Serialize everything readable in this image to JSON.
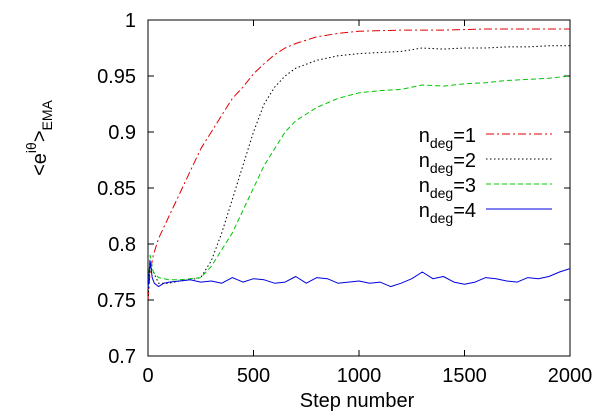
{
  "chart_data": {
    "type": "line",
    "title": "",
    "xlabel": "Step number",
    "ylabel_base": "<e",
    "ylabel_sup": "iθ",
    "ylabel_close": ">",
    "ylabel_sub": "EMA",
    "xlim": [
      0,
      2000
    ],
    "ylim": [
      0.7,
      1.0
    ],
    "xticks": [
      0,
      500,
      1000,
      1500,
      2000
    ],
    "xtick_labels": [
      "0",
      "500",
      "1000",
      "1500",
      "2000"
    ],
    "yticks": [
      0.7,
      0.75,
      0.8,
      0.85,
      0.9,
      0.95,
      1.0
    ],
    "ytick_labels": [
      "0.7",
      "0.75",
      "0.8",
      "0.85",
      "0.9",
      "0.95",
      "1"
    ],
    "grid": false,
    "legend_position": "right",
    "series": [
      {
        "name_base": "n",
        "name_sub": "deg",
        "name_suffix": "=1",
        "color": "#e00000",
        "dash": "dash-dot",
        "x": [
          0,
          10,
          25,
          50,
          100,
          150,
          200,
          250,
          300,
          350,
          400,
          450,
          500,
          550,
          600,
          650,
          700,
          800,
          900,
          1000,
          1200,
          1400,
          1600,
          1800,
          2000
        ],
        "y": [
          0.75,
          0.775,
          0.79,
          0.805,
          0.825,
          0.845,
          0.865,
          0.885,
          0.9,
          0.915,
          0.93,
          0.94,
          0.952,
          0.961,
          0.969,
          0.975,
          0.979,
          0.985,
          0.988,
          0.99,
          0.991,
          0.991,
          0.992,
          0.992,
          0.992
        ]
      },
      {
        "name_base": "n",
        "name_sub": "deg",
        "name_suffix": "=2",
        "color": "#000000",
        "dash": "dotted",
        "x": [
          0,
          10,
          25,
          50,
          100,
          150,
          200,
          250,
          300,
          350,
          400,
          450,
          500,
          550,
          600,
          650,
          700,
          800,
          900,
          1000,
          1100,
          1200,
          1300,
          1400,
          1500,
          1600,
          1700,
          1800,
          1900,
          2000
        ],
        "y": [
          0.75,
          0.78,
          0.775,
          0.765,
          0.765,
          0.767,
          0.768,
          0.77,
          0.785,
          0.81,
          0.84,
          0.87,
          0.9,
          0.925,
          0.94,
          0.95,
          0.957,
          0.964,
          0.968,
          0.97,
          0.971,
          0.972,
          0.975,
          0.974,
          0.975,
          0.975,
          0.976,
          0.976,
          0.977,
          0.977
        ]
      },
      {
        "name_base": "n",
        "name_sub": "deg",
        "name_suffix": "=3",
        "color": "#00c800",
        "dash": "dashed",
        "x": [
          0,
          10,
          25,
          50,
          100,
          150,
          200,
          250,
          300,
          350,
          400,
          450,
          500,
          550,
          600,
          650,
          700,
          800,
          900,
          1000,
          1100,
          1200,
          1300,
          1400,
          1500,
          1600,
          1700,
          1800,
          1900,
          2000
        ],
        "y": [
          0.76,
          0.79,
          0.775,
          0.77,
          0.768,
          0.768,
          0.769,
          0.77,
          0.78,
          0.795,
          0.81,
          0.83,
          0.85,
          0.87,
          0.885,
          0.9,
          0.91,
          0.922,
          0.93,
          0.935,
          0.937,
          0.938,
          0.942,
          0.941,
          0.943,
          0.944,
          0.946,
          0.947,
          0.948,
          0.95
        ]
      },
      {
        "name_base": "n",
        "name_sub": "deg",
        "name_suffix": "=4",
        "color": "#0000e0",
        "dash": "solid",
        "x": [
          0,
          10,
          20,
          30,
          50,
          75,
          100,
          150,
          200,
          250,
          300,
          350,
          400,
          450,
          500,
          550,
          600,
          650,
          700,
          750,
          800,
          850,
          900,
          950,
          1000,
          1050,
          1100,
          1150,
          1200,
          1250,
          1300,
          1350,
          1400,
          1450,
          1500,
          1550,
          1600,
          1650,
          1700,
          1750,
          1800,
          1850,
          1900,
          1950,
          2000
        ],
        "y": [
          0.76,
          0.785,
          0.77,
          0.765,
          0.762,
          0.765,
          0.766,
          0.767,
          0.768,
          0.766,
          0.767,
          0.765,
          0.77,
          0.766,
          0.769,
          0.768,
          0.765,
          0.766,
          0.771,
          0.765,
          0.77,
          0.769,
          0.765,
          0.766,
          0.767,
          0.765,
          0.766,
          0.762,
          0.765,
          0.769,
          0.775,
          0.769,
          0.771,
          0.766,
          0.764,
          0.766,
          0.77,
          0.769,
          0.767,
          0.766,
          0.77,
          0.769,
          0.771,
          0.775,
          0.778
        ]
      }
    ]
  }
}
